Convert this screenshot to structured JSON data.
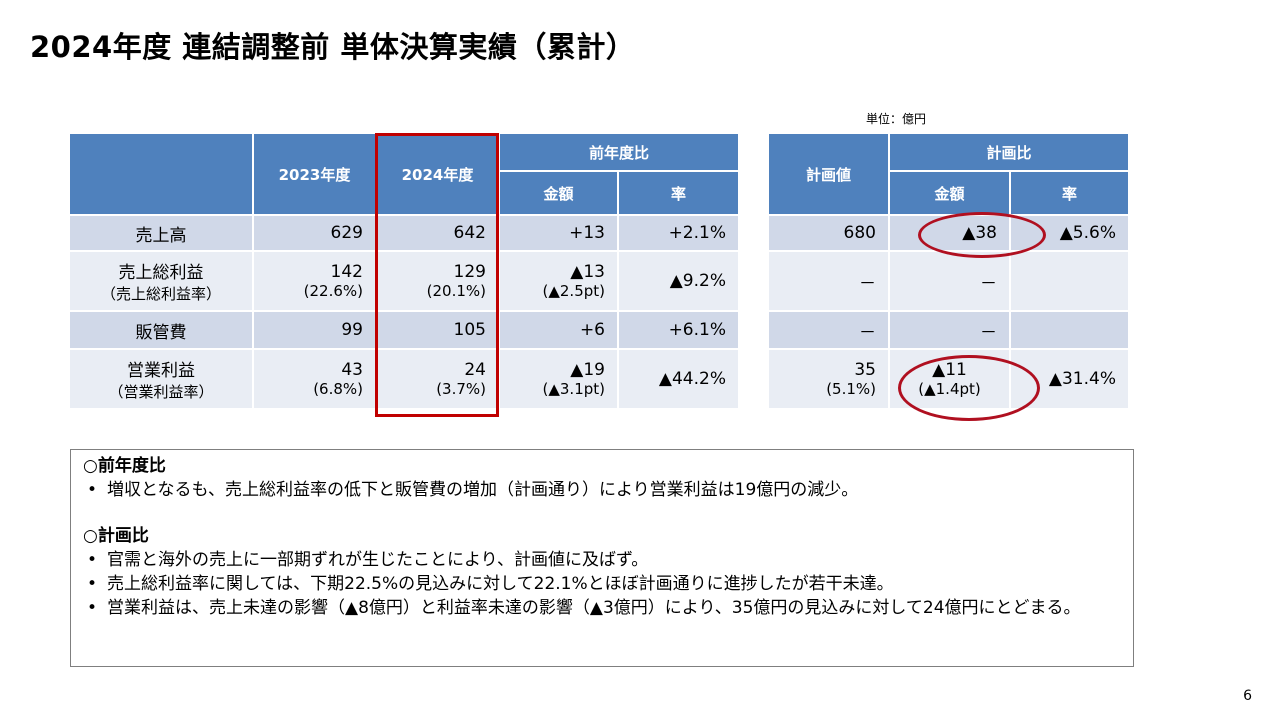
{
  "title": "2024年度 連結調整前 単体決算実績（累計）",
  "unit": "単位：億円",
  "left_table": {
    "headers": {
      "y2023": "2023年度",
      "y2024": "2024年度",
      "yoy": "前年度比",
      "amount": "金額",
      "rate": "率"
    },
    "rows": [
      {
        "label": "売上高",
        "label_sub": "",
        "y2023": "629",
        "y2023_sub": "",
        "y2024": "642",
        "y2024_sub": "",
        "amount": "+13",
        "amount_sub": "",
        "rate": "+2.1%"
      },
      {
        "label": "売上総利益",
        "label_sub": "（売上総利益率）",
        "y2023": "142",
        "y2023_sub": "(22.6%)",
        "y2024": "129",
        "y2024_sub": "(20.1%)",
        "amount": "▲13",
        "amount_sub": "(▲2.5pt)",
        "rate": "▲9.2%"
      },
      {
        "label": "販管費",
        "label_sub": "",
        "y2023": "99",
        "y2023_sub": "",
        "y2024": "105",
        "y2024_sub": "",
        "amount": "+6",
        "amount_sub": "",
        "rate": "+6.1%"
      },
      {
        "label": "営業利益",
        "label_sub": "（営業利益率）",
        "y2023": "43",
        "y2023_sub": "(6.8%)",
        "y2024": "24",
        "y2024_sub": "(3.7%)",
        "amount": "▲19",
        "amount_sub": "(▲3.1pt)",
        "rate": "▲44.2%"
      }
    ]
  },
  "right_table": {
    "headers": {
      "plan": "計画値",
      "vs_plan": "計画比",
      "amount": "金額",
      "rate": "率"
    },
    "rows": [
      {
        "plan": "680",
        "plan_sub": "",
        "amount": "▲38",
        "amount_sub": "",
        "rate": "▲5.6%"
      },
      {
        "plan": "－",
        "plan_sub": "",
        "amount": "－",
        "amount_sub": "",
        "rate": ""
      },
      {
        "plan": "－",
        "plan_sub": "",
        "amount": "－",
        "amount_sub": "",
        "rate": ""
      },
      {
        "plan": "35",
        "plan_sub": "(5.1%)",
        "amount": "▲11",
        "amount_sub": "(▲1.4pt)",
        "rate": "▲31.4%"
      }
    ]
  },
  "notes": {
    "yoy_heading": "○前年度比",
    "yoy_items": [
      "増収となるも、売上総利益率の低下と販管費の増加（計画通り）により営業利益は19億円の減少。"
    ],
    "plan_heading": "○計画比",
    "plan_items": [
      "官需と海外の売上に一部期ずれが生じたことにより、計画値に及ばず。",
      "売上総利益率に関しては、下期22.5%の見込みに対して22.1%とほぼ計画通りに進捗したが若干未達。",
      "営業利益は、売上未達の影響（▲8億円）と利益率未達の影響（▲3億円）により、35億円の見込みに対して24億円にとどまる。"
    ]
  },
  "page_number": "6",
  "colors": {
    "header_blue": "#4f81bd",
    "row_dark": "#d0d8e8",
    "row_light": "#e9edf4",
    "highlight_red": "#c00000"
  }
}
